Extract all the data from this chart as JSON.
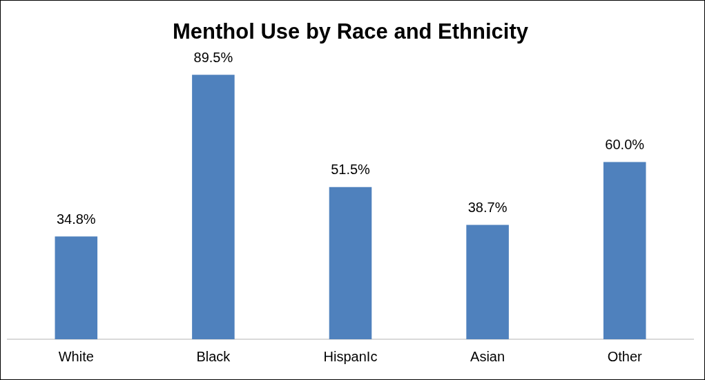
{
  "chart_data": {
    "type": "bar",
    "title": "Menthol Use by Race and Ethnicity",
    "categories": [
      "White",
      "Black",
      "HispanIc",
      "Asian",
      "Other"
    ],
    "values": [
      34.8,
      89.5,
      51.5,
      38.7,
      60.0
    ],
    "value_labels": [
      "34.8%",
      "89.5%",
      "51.5%",
      "38.7%",
      "60.0%"
    ],
    "color": "#4f81bd",
    "grid": false,
    "legend": false
  }
}
